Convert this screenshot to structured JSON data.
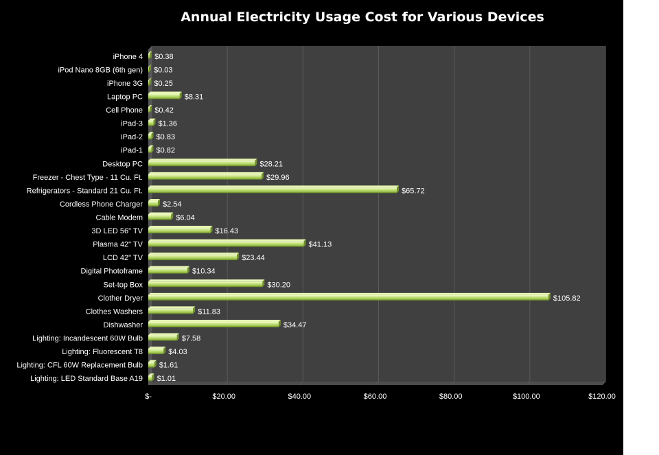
{
  "chart_data": {
    "type": "bar",
    "orientation": "horizontal",
    "title": "Annual Electricity Usage Cost for Various Devices",
    "xlabel": "",
    "ylabel": "",
    "xlim": [
      0,
      120
    ],
    "grid": true,
    "legend": "none",
    "colors": {
      "background": "#000000",
      "plot_area": "#404040",
      "bar_fill": "#b5d66b",
      "bar_highlight": "#e6f5b3",
      "bar_shadow": "#6f8f2a",
      "gridline": "#5a5a5a",
      "text": "#ffffff"
    },
    "x_ticks": [
      {
        "value": 0,
        "label": "$-"
      },
      {
        "value": 20,
        "label": "$20.00"
      },
      {
        "value": 40,
        "label": "$40.00"
      },
      {
        "value": 60,
        "label": "$60.00"
      },
      {
        "value": 80,
        "label": "$80.00"
      },
      {
        "value": 100,
        "label": "$100.00"
      },
      {
        "value": 120,
        "label": "$120.00"
      }
    ],
    "categories": [
      "iPhone 4",
      "iPod Nano 8GB (6th gen)",
      "iPhone 3G",
      "Laptop PC",
      "Cell Phone",
      "iPad-3",
      "iPad-2",
      "iPad-1",
      "Desktop PC",
      "Freezer - Chest Type - 11 Cu. Ft.",
      "Refrigerators - Standard 21 Cu. Ft.",
      "Cordless Phone Charger",
      "Cable Modem",
      "3D LED 56\" TV",
      "Plasma 42\" TV",
      "LCD 42\" TV",
      "Digital Photoframe",
      "Set-top Box",
      "Clother Dryer",
      "Clothes Washers",
      "Dishwasher",
      "Lighting: Incandescent 60W Bulb",
      "Lighting: Fluorescent T8",
      "Lighting: CFL 60W Replacement Bulb",
      "Lighting: LED Standard Base A19"
    ],
    "values": [
      0.38,
      0.03,
      0.25,
      8.31,
      0.42,
      1.36,
      0.83,
      0.82,
      28.21,
      29.96,
      65.72,
      2.54,
      6.04,
      16.43,
      41.13,
      23.44,
      10.34,
      30.2,
      105.82,
      11.83,
      34.47,
      7.58,
      4.03,
      1.61,
      1.01
    ],
    "data_labels": [
      "$0.38",
      "$0.03",
      "$0.25",
      "$8.31",
      "$0.42",
      "$1.36",
      "$0.83",
      "$0.82",
      "$28.21",
      "$29.96",
      "$65.72",
      "$2.54",
      "$6.04",
      "$16.43",
      "$41.13",
      "$23.44",
      "$10.34",
      "$30.20",
      "$105.82",
      "$11.83",
      "$34.47",
      "$7.58",
      "$4.03",
      "$1.61",
      "$1.01"
    ]
  }
}
